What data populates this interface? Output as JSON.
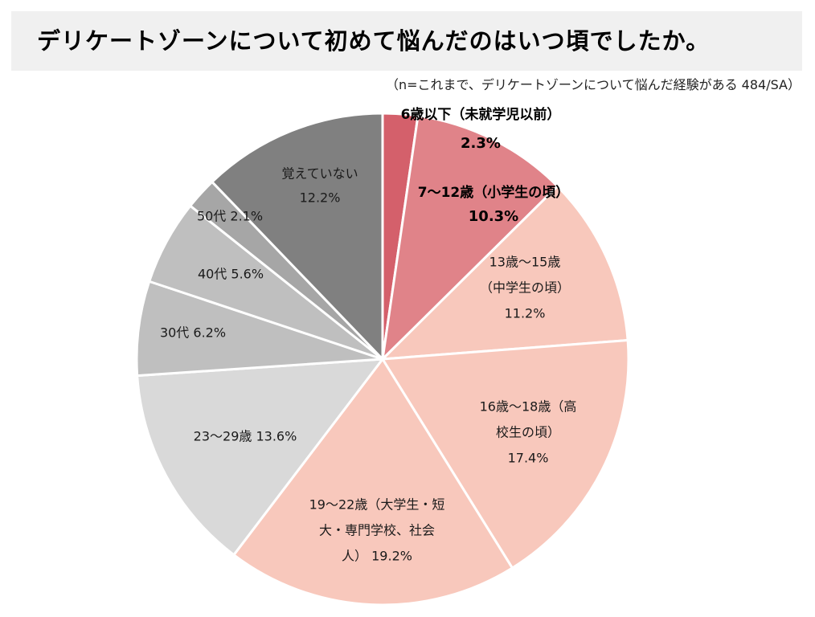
{
  "title": "デリケートゾーンについて初めて悩んだのはいつ頃でしたか。",
  "note": "（n=これまで、デリケートゾーンについて悩んだ経験がある 484/SA）",
  "chart_data": {
    "type": "pie",
    "title": "デリケートゾーンについて初めて悩んだのはいつ頃でしたか。",
    "subtitle": "（n=これまで、デリケートゾーンについて悩んだ経験がある 484/SA）",
    "unit": "%",
    "slices": [
      {
        "name": "6歳以下（未就学児以前）",
        "value": 2.3,
        "value_label": "2.3%",
        "color": "#d4606b",
        "bold": true,
        "label_lines": [
          "6歳以下（未就学児以前）"
        ],
        "value_line": "2.3%"
      },
      {
        "name": "7〜12歳（小学生の頃）",
        "value": 10.3,
        "value_label": "10.3%",
        "color": "#e08389",
        "bold": true,
        "label_lines": [
          "7〜12歳（小学生の頃）"
        ],
        "value_line": "10.3%"
      },
      {
        "name": "13歳〜15歳（中学生の頃）",
        "value": 11.2,
        "value_label": "11.2%",
        "color": "#f8c8bc",
        "bold": false,
        "label_lines": [
          "13歳〜15歳",
          "（中学生の頃）",
          "11.2%"
        ]
      },
      {
        "name": "16歳〜18歳（高校生の頃）",
        "value": 17.4,
        "value_label": "17.4%",
        "color": "#f8c8bc",
        "bold": false,
        "label_lines": [
          "16歳〜18歳（高",
          "校生の頃）",
          "17.4%"
        ]
      },
      {
        "name": "19〜22歳（大学生・短大・専門学校、社会人）",
        "value": 19.2,
        "value_label": "19.2%",
        "color": "#f8c8bc",
        "bold": false,
        "label_lines": [
          "19〜22歳（大学生・短",
          "大・専門学校、社会",
          "人） 19.2%"
        ]
      },
      {
        "name": "23〜29歳",
        "value": 13.6,
        "value_label": "13.6%",
        "color": "#d9d9d9",
        "bold": false,
        "label_lines": [
          "23〜29歳 13.6%"
        ]
      },
      {
        "name": "30代",
        "value": 6.2,
        "value_label": "6.2%",
        "color": "#bfbfbf",
        "bold": false,
        "label_lines": [
          "30代 6.2%"
        ]
      },
      {
        "name": "40代",
        "value": 5.6,
        "value_label": "5.6%",
        "color": "#bfbfbf",
        "bold": false,
        "label_lines": [
          "40代 5.6%"
        ]
      },
      {
        "name": "50代",
        "value": 2.1,
        "value_label": "2.1%",
        "color": "#a6a6a6",
        "bold": false,
        "label_lines": [
          "50代 2.1%"
        ]
      },
      {
        "name": "覚えていない",
        "value": 12.2,
        "value_label": "12.2%",
        "color": "#808080",
        "bold": false,
        "label_lines": [
          "覚えていない",
          "12.2%"
        ]
      }
    ],
    "start_angle_deg": 0,
    "direction": "clockwise",
    "legend": "none",
    "slice_border_color": "#ffffff"
  }
}
